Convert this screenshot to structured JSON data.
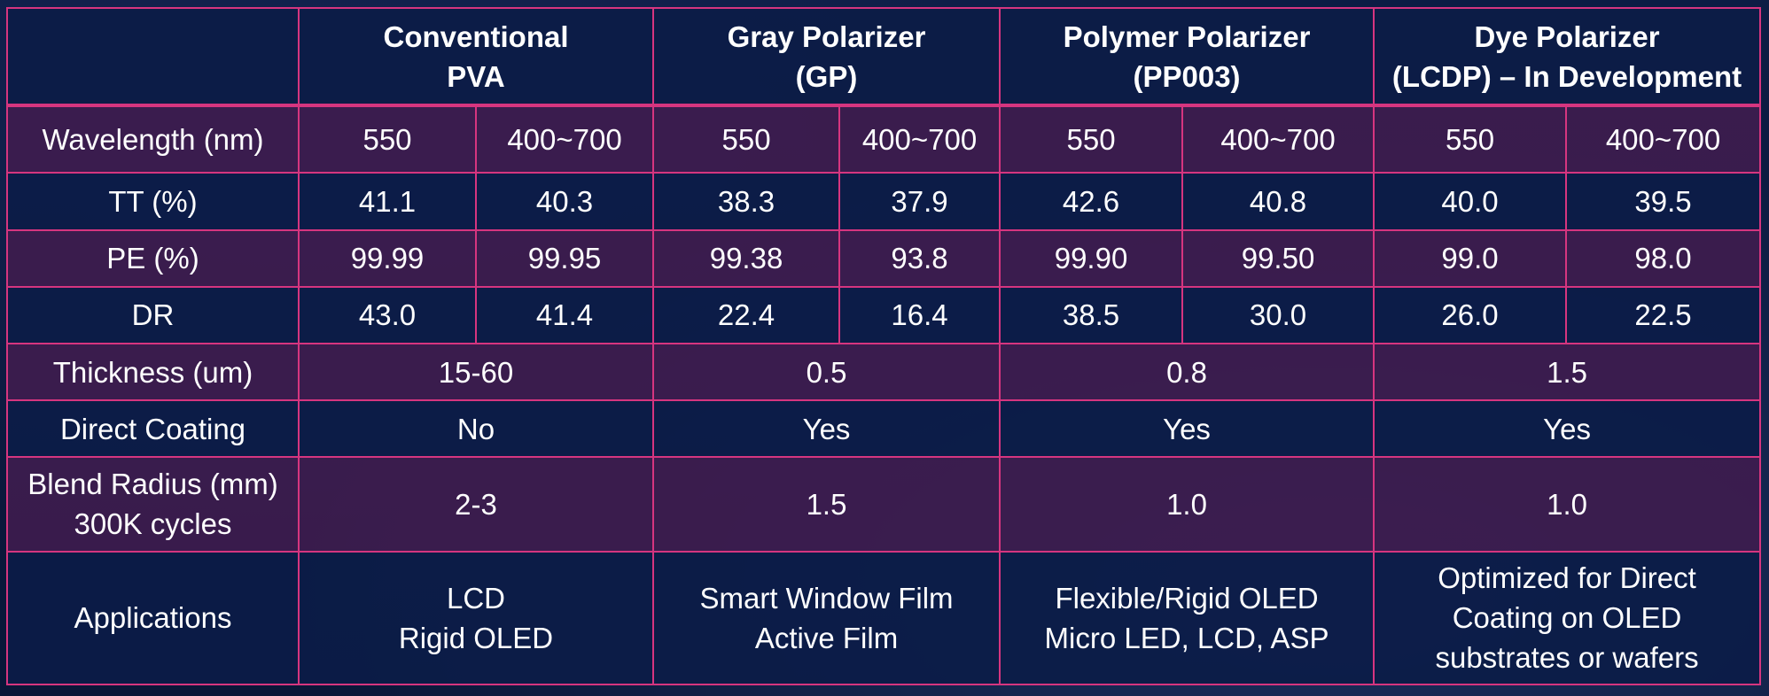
{
  "columns": {
    "corner": "",
    "conventional": [
      "Conventional",
      "PVA"
    ],
    "gray": [
      "Gray Polarizer",
      "(GP)"
    ],
    "polymer": [
      "Polymer Polarizer",
      "(PP003)"
    ],
    "dye": [
      "Dye Polarizer",
      "(LCDP) – In Development"
    ]
  },
  "rows": {
    "wavelength": {
      "label": "Wavelength (nm)",
      "values": [
        "550",
        "400~700",
        "550",
        "400~700",
        "550",
        "400~700",
        "550",
        "400~700"
      ]
    },
    "tt": {
      "label": "TT (%)",
      "values": [
        "41.1",
        "40.3",
        "38.3",
        "37.9",
        "42.6",
        "40.8",
        "40.0",
        "39.5"
      ]
    },
    "pe": {
      "label": "PE (%)",
      "values": [
        "99.99",
        "99.95",
        "99.38",
        "93.8",
        "99.90",
        "99.50",
        "99.0",
        "98.0"
      ]
    },
    "dr": {
      "label": "DR",
      "values": [
        "43.0",
        "41.4",
        "22.4",
        "16.4",
        "38.5",
        "30.0",
        "26.0",
        "22.5"
      ]
    },
    "thickness": {
      "label": "Thickness (um)",
      "values": [
        "15-60",
        "0.5",
        "0.8",
        "1.5"
      ]
    },
    "direct_coating": {
      "label": "Direct Coating",
      "values": [
        "No",
        "Yes",
        "Yes",
        "Yes"
      ]
    },
    "blend_radius": {
      "label": [
        "Blend Radius (mm)",
        "300K cycles"
      ],
      "values": [
        "2-3",
        "1.5",
        "1.0",
        "1.0"
      ]
    },
    "applications": {
      "label": "Applications",
      "values": [
        [
          "LCD",
          "Rigid OLED"
        ],
        [
          "Smart Window Film",
          "Active Film"
        ],
        [
          "Flexible/Rigid OLED",
          "Micro LED, LCD, ASP"
        ],
        [
          "Optimized for Direct",
          "Coating on OLED",
          "substrates or wafers"
        ]
      ]
    }
  },
  "colors": {
    "border": "#d6357f",
    "navy_row": "#0c1c48",
    "purple_row": "#3e1c4e",
    "text": "#ffffff"
  }
}
